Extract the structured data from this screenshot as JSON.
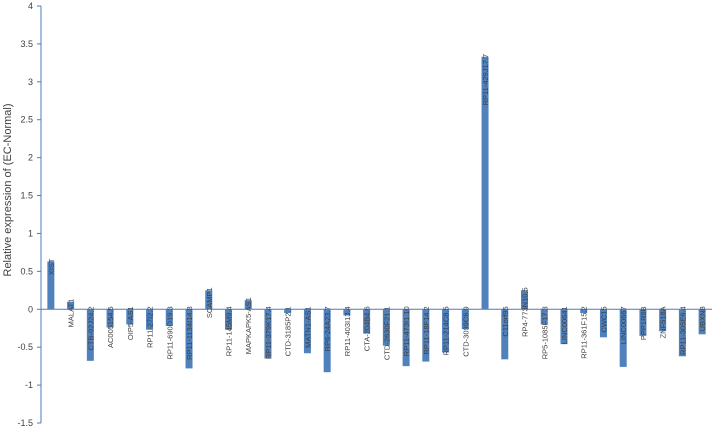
{
  "chart_data": {
    "type": "bar",
    "title": "",
    "xlabel": "",
    "ylabel": "Relative expression of (EC-Normal)",
    "ylim": [
      -1.5,
      4
    ],
    "yticks": [
      4,
      3.5,
      3,
      2.5,
      2,
      1.5,
      1,
      0.5,
      0,
      -0.5,
      -1,
      -1.5
    ],
    "grid": false,
    "legend": "none",
    "bar_color": "#4F81BD",
    "axis_color": "#4A7EBB",
    "categories": [
      "XIST",
      "MALAT1",
      "CTB-92J24.2",
      "AC005154.5",
      "OIP5-AS1",
      "RP11-27I2.2",
      "RP11-690D19.3",
      "RP11-1134I14.8",
      "SCAMP1",
      "RP11-145M9.4",
      "MAPKAPK5-AS1",
      "RP11-379K17.4",
      "CTD-3185P2.1",
      "MATN1-AS1",
      "RP6-24A23.7",
      "RP11-403I13.4",
      "CTA-204B4.6",
      "CTD-2630F21.1",
      "RP11-473I1.10",
      "RP11-18F14.2",
      "RP11-214C8.5",
      "CTD-3099C6.9",
      "RP11-429J17.7",
      "C11orf95",
      "RP4-773N10.5",
      "RP5-1085F17.3",
      "LINC00641",
      "RP11-361F15.2",
      "CWC15",
      "LINC00667",
      "PPP1R9B",
      "ZNF518A",
      "RP11-305E6.4",
      "UBXN8"
    ],
    "values": [
      0.63,
      0.1,
      -0.68,
      -0.24,
      -0.2,
      -0.27,
      -0.22,
      -0.78,
      0.25,
      -0.27,
      0.12,
      -0.65,
      -0.05,
      -0.58,
      -0.83,
      -0.08,
      -0.32,
      -0.48,
      -0.75,
      -0.69,
      -0.57,
      -0.26,
      3.33,
      -0.66,
      0.25,
      -0.2,
      -0.46,
      -0.05,
      -0.37,
      -0.76,
      -0.35,
      -0.29,
      -0.62,
      -0.33
    ]
  }
}
